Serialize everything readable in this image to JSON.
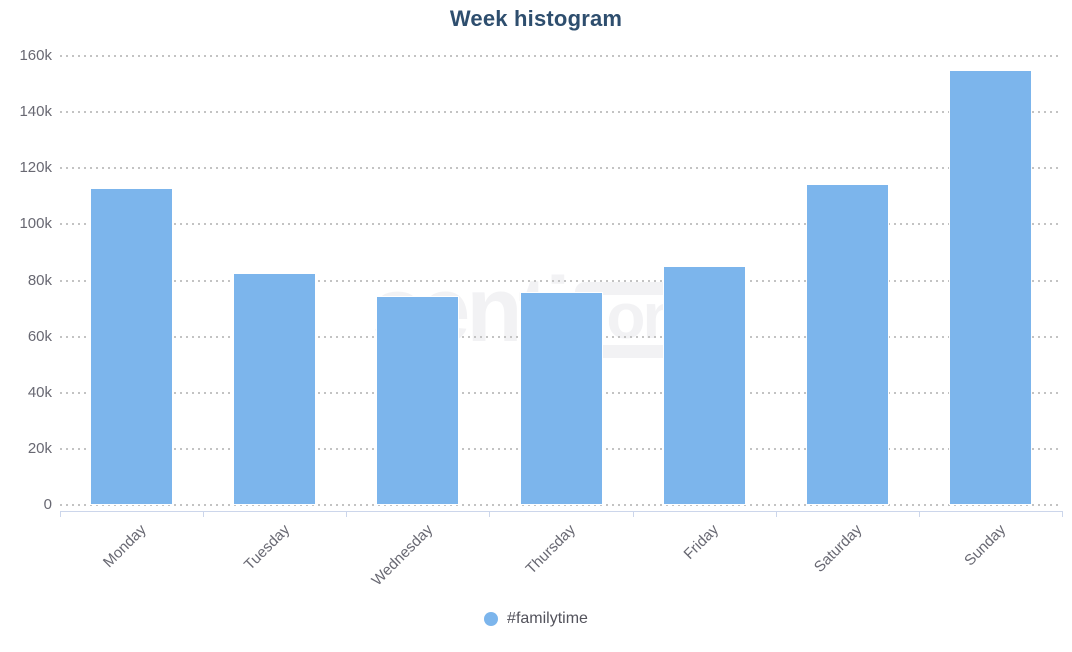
{
  "chart_data": {
    "type": "bar",
    "title": "Week histogram",
    "categories": [
      "Monday",
      "Tuesday",
      "Wednesday",
      "Thursday",
      "Friday",
      "Saturday",
      "Sunday"
    ],
    "series": [
      {
        "name": "#familytime",
        "color": "#7cb5ec",
        "values": [
          113000,
          82500,
          74500,
          76000,
          85000,
          114500,
          155000
        ]
      }
    ],
    "xlabel": "",
    "ylabel": "",
    "ylim": [
      0,
      160000
    ],
    "ytick_interval": 20000,
    "ytick_labels": [
      "0",
      "20k",
      "40k",
      "60k",
      "80k",
      "100k",
      "120k",
      "140k",
      "160k"
    ],
    "x_label_rotation": -45,
    "grid": "horizontal dotted",
    "legend_position": "bottom-center"
  },
  "legend": {
    "series_label": "#familytime",
    "marker_icon": "circle-marker-icon"
  },
  "watermark": {
    "text_left": "senti",
    "text_boxed": "one"
  },
  "colors": {
    "bar_fill": "#7cb5ec",
    "bar_border": "#ffffff",
    "title_text": "#2e4e6e",
    "axis_line": "#ccd6eb",
    "grid_dots": "#c3c3c3",
    "tick_label_text": "#686872",
    "legend_text": "#53535c",
    "watermark_gray": "#f2f2f4",
    "background": "#ffffff"
  }
}
